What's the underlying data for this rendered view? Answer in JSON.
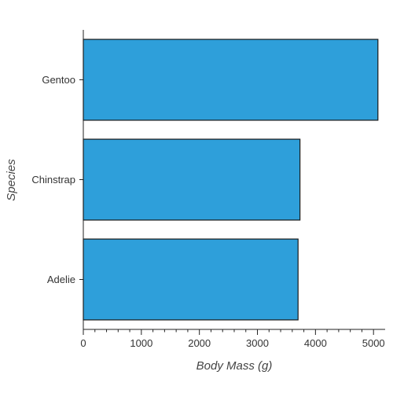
{
  "chart_data": {
    "type": "bar",
    "orientation": "horizontal",
    "categories": [
      "Adelie",
      "Chinstrap",
      "Gentoo"
    ],
    "values": [
      3700,
      3733,
      5076
    ],
    "xlabel": "Body Mass (g)",
    "ylabel": "Species",
    "xlim": [
      0,
      5100
    ],
    "xticks": [
      0,
      1000,
      2000,
      3000,
      4000,
      5000
    ],
    "grid": false,
    "bar_color": "#2e9fda",
    "bar_edge_color": "#1a1a1a"
  }
}
